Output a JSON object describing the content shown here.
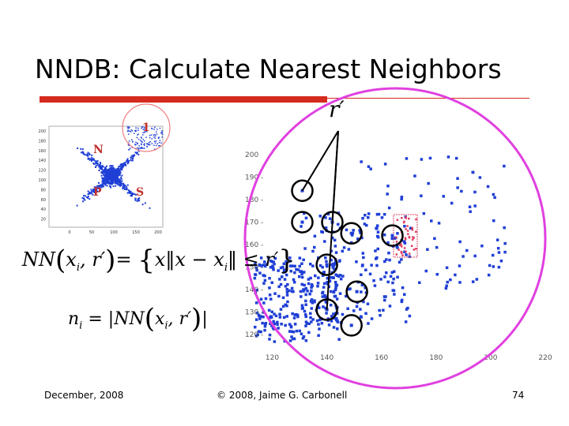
{
  "slide": {
    "title": "NNDB: Calculate Nearest Neighbors",
    "r_prime": "r′",
    "footer": {
      "date": "December, 2008",
      "copyright": "© 2008, Jaime G. Carbonell",
      "page": "74"
    }
  },
  "formulas": {
    "nn_definition": "NN(xᵢ, r′) = { x ‖x − xᵢ‖ ≤ r′ }",
    "count": "nᵢ = |NN(xᵢ, r′)|"
  },
  "small_scatter": {
    "cluster_labels": [
      "1",
      "N",
      "P",
      "S"
    ],
    "y_ticks": [
      "200",
      "180",
      "160",
      "140",
      "120",
      "100",
      "80",
      "60",
      "40",
      "20"
    ],
    "x_ticks": [
      "0",
      "50",
      "100",
      "150",
      "200"
    ]
  },
  "chart_data": {
    "type": "scatter",
    "x_ticks": [
      "120",
      "140",
      "160",
      "180",
      "200",
      "220"
    ],
    "y_ticks": [
      "200",
      "190",
      "180",
      "170",
      "160",
      "150",
      "140",
      "130",
      "120"
    ],
    "xlim": [
      110,
      220
    ],
    "ylim": [
      115,
      205
    ],
    "colors": {
      "points": "#1f3fd6",
      "circle": "#e040e0",
      "highlight": "#e04060",
      "neighbor_ring": "#000000"
    },
    "neighbor_circles": [
      {
        "x": 131,
        "y": 184
      },
      {
        "x": 131,
        "y": 170
      },
      {
        "x": 142,
        "y": 170
      },
      {
        "x": 149,
        "y": 165
      },
      {
        "x": 164,
        "y": 164
      },
      {
        "x": 140,
        "y": 151
      },
      {
        "x": 151,
        "y": 139
      },
      {
        "x": 140,
        "y": 131
      },
      {
        "x": 149,
        "y": 124
      }
    ]
  }
}
